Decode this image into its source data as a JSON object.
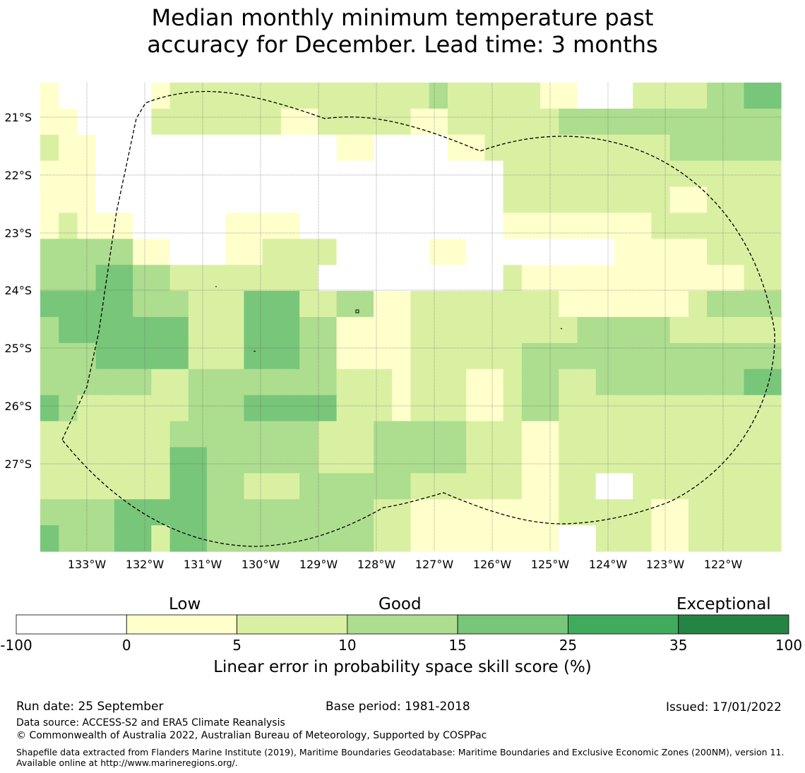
{
  "title": {
    "line1": "Median monthly minimum temperature past",
    "line2": "accuracy for December. Lead time: 3 months"
  },
  "map": {
    "lat_labels": [
      "21°S",
      "22°S",
      "23°S",
      "24°S",
      "25°S",
      "26°S",
      "27°S"
    ],
    "lon_labels": [
      "133°W",
      "132°W",
      "131°W",
      "130°W",
      "129°W",
      "128°W",
      "127°W",
      "126°W",
      "125°W",
      "124°W",
      "123°W",
      "122°W"
    ],
    "lon_range": [
      -133.8,
      -121.2
    ],
    "lat_range": [
      -20.4,
      -28.5
    ],
    "cell_size_deg": [
      0.833,
      0.555
    ],
    "class_colors": [
      "#ffffff",
      "#ffffcc",
      "#d9f0a3",
      "#addd8e",
      "#78c679",
      "#41ab5d",
      "#238443"
    ],
    "grid": [
      [
        1,
        0,
        0,
        0,
        0,
        0,
        1,
        2,
        2,
        2,
        2,
        2,
        2,
        2,
        2,
        2,
        2,
        2,
        2,
        2,
        2,
        3,
        2,
        2,
        2,
        2,
        2,
        1,
        1,
        0,
        0,
        0,
        2,
        2,
        2,
        2,
        3,
        3,
        4,
        4
      ],
      [
        1,
        1,
        0,
        0,
        0,
        0,
        2,
        2,
        2,
        2,
        2,
        2,
        2,
        1,
        1,
        2,
        2,
        2,
        2,
        2,
        1,
        1,
        2,
        2,
        2,
        2,
        2,
        2,
        3,
        3,
        3,
        3,
        3,
        3,
        3,
        3,
        3,
        3,
        3,
        3
      ],
      [
        2,
        1,
        1,
        0,
        0,
        0,
        0,
        0,
        0,
        0,
        0,
        0,
        0,
        0,
        0,
        0,
        1,
        1,
        0,
        0,
        0,
        0,
        1,
        1,
        2,
        2,
        2,
        2,
        2,
        2,
        2,
        2,
        2,
        2,
        3,
        3,
        3,
        3,
        3,
        3
      ],
      [
        1,
        1,
        1,
        0,
        0,
        0,
        0,
        0,
        0,
        0,
        0,
        0,
        0,
        0,
        0,
        0,
        0,
        0,
        0,
        0,
        0,
        0,
        0,
        0,
        0,
        2,
        2,
        2,
        2,
        2,
        2,
        2,
        2,
        2,
        2,
        2,
        2,
        2,
        2,
        2
      ],
      [
        1,
        1,
        1,
        0,
        0,
        0,
        0,
        0,
        0,
        0,
        0,
        0,
        0,
        0,
        0,
        0,
        0,
        0,
        0,
        0,
        0,
        0,
        0,
        0,
        0,
        2,
        2,
        2,
        2,
        2,
        2,
        2,
        2,
        2,
        1,
        1,
        2,
        2,
        2,
        2
      ],
      [
        1,
        2,
        1,
        1,
        1,
        0,
        0,
        0,
        0,
        0,
        1,
        1,
        1,
        1,
        0,
        0,
        0,
        0,
        0,
        0,
        0,
        0,
        0,
        0,
        0,
        1,
        1,
        1,
        1,
        1,
        1,
        1,
        1,
        2,
        2,
        2,
        2,
        2,
        2,
        2
      ],
      [
        3,
        3,
        3,
        3,
        3,
        1,
        1,
        0,
        0,
        0,
        1,
        1,
        2,
        2,
        2,
        2,
        0,
        0,
        0,
        0,
        0,
        1,
        1,
        0,
        0,
        0,
        0,
        0,
        0,
        0,
        0,
        1,
        1,
        1,
        1,
        1,
        2,
        2,
        2,
        2
      ],
      [
        3,
        3,
        3,
        4,
        4,
        3,
        3,
        2,
        2,
        2,
        2,
        2,
        2,
        2,
        2,
        0,
        0,
        0,
        0,
        0,
        0,
        0,
        0,
        0,
        0,
        2,
        1,
        1,
        1,
        1,
        1,
        1,
        1,
        1,
        1,
        1,
        1,
        1,
        2,
        2
      ],
      [
        4,
        4,
        4,
        4,
        4,
        3,
        3,
        3,
        2,
        2,
        2,
        4,
        4,
        4,
        2,
        2,
        3,
        3,
        1,
        1,
        2,
        2,
        2,
        2,
        2,
        2,
        2,
        2,
        1,
        1,
        1,
        1,
        1,
        1,
        1,
        2,
        3,
        3,
        3,
        3
      ],
      [
        3,
        4,
        4,
        4,
        4,
        4,
        4,
        4,
        2,
        2,
        2,
        4,
        4,
        4,
        3,
        3,
        1,
        1,
        1,
        1,
        2,
        2,
        2,
        2,
        2,
        2,
        2,
        2,
        2,
        3,
        3,
        3,
        3,
        3,
        2,
        2,
        2,
        2,
        2,
        2
      ],
      [
        3,
        3,
        3,
        4,
        4,
        4,
        4,
        4,
        2,
        2,
        2,
        4,
        4,
        4,
        3,
        3,
        1,
        1,
        1,
        1,
        2,
        2,
        2,
        2,
        2,
        2,
        3,
        3,
        3,
        3,
        3,
        3,
        3,
        3,
        3,
        3,
        3,
        3,
        3,
        3
      ],
      [
        3,
        3,
        3,
        3,
        3,
        3,
        2,
        2,
        3,
        3,
        3,
        3,
        3,
        3,
        3,
        3,
        2,
        2,
        2,
        1,
        2,
        2,
        2,
        1,
        1,
        2,
        3,
        3,
        2,
        2,
        3,
        3,
        3,
        3,
        3,
        3,
        3,
        3,
        4,
        4
      ],
      [
        4,
        3,
        2,
        2,
        2,
        2,
        2,
        2,
        3,
        3,
        3,
        4,
        4,
        4,
        4,
        4,
        2,
        2,
        2,
        1,
        2,
        2,
        2,
        1,
        1,
        2,
        3,
        3,
        2,
        2,
        2,
        2,
        2,
        2,
        2,
        2,
        2,
        2,
        2,
        2
      ],
      [
        2,
        2,
        2,
        2,
        2,
        2,
        2,
        3,
        3,
        3,
        3,
        3,
        3,
        3,
        3,
        2,
        2,
        2,
        3,
        3,
        3,
        3,
        3,
        2,
        2,
        2,
        1,
        1,
        2,
        2,
        2,
        2,
        2,
        2,
        2,
        2,
        2,
        2,
        2,
        2
      ],
      [
        2,
        2,
        2,
        2,
        2,
        2,
        2,
        4,
        4,
        3,
        3,
        3,
        3,
        3,
        3,
        2,
        2,
        2,
        3,
        3,
        3,
        3,
        3,
        2,
        2,
        2,
        1,
        1,
        2,
        2,
        2,
        2,
        2,
        2,
        2,
        2,
        2,
        2,
        2,
        2
      ],
      [
        2,
        2,
        2,
        2,
        2,
        2,
        2,
        4,
        4,
        3,
        3,
        2,
        2,
        2,
        3,
        3,
        3,
        3,
        3,
        3,
        2,
        2,
        2,
        2,
        2,
        2,
        1,
        1,
        2,
        2,
        0,
        0,
        2,
        2,
        2,
        2,
        2,
        2,
        2,
        2
      ],
      [
        3,
        3,
        3,
        3,
        4,
        4,
        4,
        4,
        4,
        3,
        3,
        3,
        3,
        3,
        3,
        3,
        3,
        3,
        2,
        2,
        1,
        1,
        1,
        1,
        1,
        1,
        1,
        1,
        2,
        2,
        2,
        2,
        2,
        1,
        1,
        2,
        2,
        2,
        2,
        2
      ],
      [
        4,
        3,
        3,
        3,
        4,
        4,
        2,
        4,
        4,
        3,
        3,
        3,
        3,
        3,
        3,
        3,
        3,
        3,
        2,
        2,
        1,
        1,
        1,
        1,
        1,
        1,
        1,
        1,
        0,
        0,
        2,
        2,
        2,
        1,
        1,
        2,
        2,
        2,
        2,
        2
      ]
    ]
  },
  "colorbar": {
    "label_low": "Low",
    "label_good": "Good",
    "label_exceptional": "Exceptional",
    "ticks": [
      "-100",
      "0",
      "5",
      "10",
      "15",
      "25",
      "35",
      "100"
    ],
    "colors": [
      "#ffffff",
      "#ffffcc",
      "#d9f0a3",
      "#addd8e",
      "#78c679",
      "#41ab5d",
      "#238443"
    ],
    "title": "Linear error in probability space skill score (%)"
  },
  "footer": {
    "run_date": "Run date: 25 September",
    "base_period": "Base period: 1981-2018",
    "issued": "Issued: 17/01/2022",
    "data_source": "Data source: ACCESS-S2 and ERA5 Climate Reanalysis",
    "copyright": "© Commonwealth of Australia 2022, Australian Bureau of Meteorology, Supported by COSPPac",
    "shapefile": "Shapefile data extracted from Flanders Marine Institute (2019), Maritime Boundaries Geodatabase: Maritime Boundaries and Exclusive Economic Zones (200NM), version 11. Available online at http://www.marineregions.org/."
  }
}
